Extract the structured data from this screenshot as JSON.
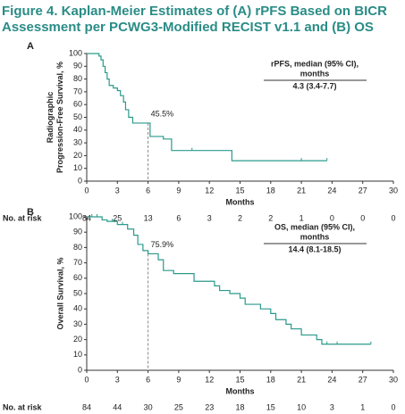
{
  "title": [
    "Figure 4. Kaplan-Meier Estimates of (A) rPFS Based on BICR",
    "Assessment per PCWG3-Modified RECIST v1.1 and (B) OS"
  ],
  "chart_data": [
    {
      "type": "step",
      "panel": "A",
      "ylabel": [
        "Radiographic",
        "Progression-Free Survival, %"
      ],
      "xlabel": "Months",
      "xlim": [
        0,
        30
      ],
      "xticks": [
        0,
        3,
        6,
        9,
        12,
        15,
        18,
        21,
        24,
        27,
        30
      ],
      "ylim": [
        0,
        100
      ],
      "yticks": [
        0,
        10,
        20,
        30,
        40,
        50,
        60,
        70,
        80,
        90,
        100
      ],
      "series": [
        {
          "color": "#2a9a8c",
          "x": [
            0,
            1.2,
            1.4,
            1.6,
            1.8,
            2,
            2.2,
            2.6,
            3,
            3.3,
            3.6,
            3.8,
            4.1,
            4.5,
            6.2,
            7.5,
            8.3,
            14.2,
            23.5
          ],
          "values": [
            100,
            98,
            95,
            90,
            85,
            80,
            75,
            73,
            71,
            67,
            62,
            56,
            50,
            45.5,
            35,
            33,
            24,
            16,
            16
          ],
          "censored_x": [
            10.3,
            21,
            23.5
          ]
        }
      ],
      "annotation": {
        "text": "45.5%",
        "x": 6,
        "y": 45.5
      },
      "legend": [
        "rPFS, median (95% CI),",
        "months"
      ],
      "median": "4.3 (3.4-7.7)",
      "at_risk_label": "No. at risk",
      "at_risk": [
        "84",
        "25",
        "13",
        "6",
        "3",
        "2",
        "2",
        "1",
        "0",
        "0",
        "0"
      ]
    },
    {
      "type": "step",
      "panel": "B",
      "ylabel": [
        "Overall Survival, %"
      ],
      "xlabel": "Months",
      "xlim": [
        0,
        30
      ],
      "xticks": [
        0,
        3,
        6,
        9,
        12,
        15,
        18,
        21,
        24,
        27,
        30
      ],
      "ylim": [
        0,
        100
      ],
      "yticks": [
        0,
        10,
        20,
        30,
        40,
        50,
        60,
        70,
        80,
        90,
        100
      ],
      "series": [
        {
          "color": "#2a9a8c",
          "x": [
            0,
            1.5,
            2,
            3,
            4,
            4.6,
            5,
            5.5,
            6,
            7,
            7.5,
            8.5,
            10.5,
            12.5,
            13,
            14,
            15,
            15.5,
            17,
            18,
            18.5,
            19.5,
            20,
            21,
            22.5,
            23,
            27.8
          ],
          "values": [
            100,
            98,
            97,
            95,
            92,
            88,
            82,
            78,
            75.9,
            72,
            65,
            63,
            58,
            55,
            52,
            50,
            47,
            43,
            40,
            37,
            33,
            30,
            27,
            23,
            20,
            17,
            17
          ],
          "censored_x": [
            0.5,
            1,
            2.5,
            3.5,
            23.5,
            24.5,
            27.8
          ]
        }
      ],
      "annotation": {
        "text": "75.9%",
        "x": 6,
        "y": 75.9
      },
      "legend": [
        "OS, median (95% CI),",
        "months"
      ],
      "median": "14.4 (8.1-18.5)",
      "at_risk_label": "No. at risk",
      "at_risk": [
        "84",
        "44",
        "30",
        "25",
        "23",
        "18",
        "15",
        "10",
        "3",
        "1",
        "0"
      ]
    }
  ]
}
